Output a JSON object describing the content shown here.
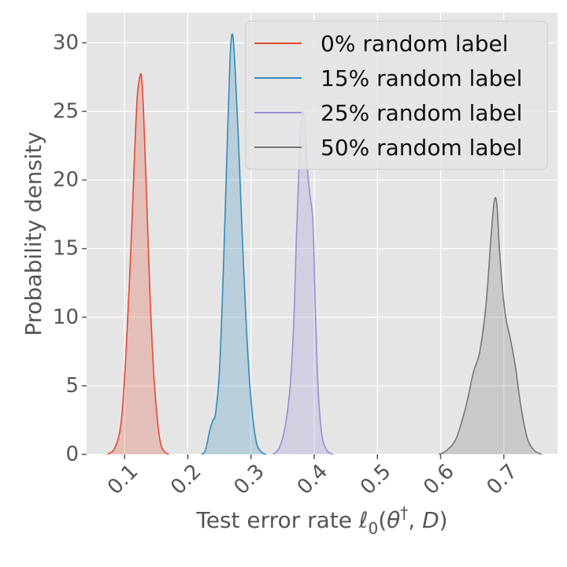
{
  "chart_data": {
    "type": "area",
    "xlabel": "Test error rate",
    "xlabel_math": {
      "ell": "ℓ",
      "sub": "0",
      "open": "(",
      "theta": "θ",
      "dagger": "†",
      "sep": ", ",
      "D": "D",
      "close": ")"
    },
    "ylabel": "Probability density",
    "xlim": [
      0.04,
      0.785
    ],
    "ylim": [
      0,
      32.2
    ],
    "xticks": [
      0.1,
      0.2,
      0.3,
      0.4,
      0.5,
      0.6,
      0.7
    ],
    "xtick_labels": [
      "0.1",
      "0.2",
      "0.3",
      "0.4",
      "0.5",
      "0.6",
      "0.7"
    ],
    "yticks": [
      0,
      5,
      10,
      15,
      20,
      25,
      30
    ],
    "ytick_labels": [
      "0",
      "5",
      "10",
      "15",
      "20",
      "25",
      "30"
    ],
    "grid": true,
    "legend_position": "top-right",
    "background": "#e5e5e5",
    "series": [
      {
        "name": "0% random label",
        "color": "#e24a33",
        "x": [
          0.073,
          0.085,
          0.095,
          0.103,
          0.11,
          0.116,
          0.12,
          0.124,
          0.127,
          0.13,
          0.134,
          0.14,
          0.146,
          0.152,
          0.157,
          0.163,
          0.17
        ],
        "y": [
          0,
          0.5,
          2.5,
          8,
          15,
          22,
          26,
          27.5,
          27.5,
          25,
          20,
          12,
          6,
          2.5,
          0.8,
          0.2,
          0
        ]
      },
      {
        "name": "15% random label",
        "color": "#348abd",
        "x": [
          0.222,
          0.228,
          0.235,
          0.24,
          0.244,
          0.25,
          0.256,
          0.262,
          0.267,
          0.271,
          0.275,
          0.281,
          0.287,
          0.293,
          0.3,
          0.308,
          0.316,
          0.324
        ],
        "y": [
          0,
          0.3,
          1.8,
          2.5,
          3.0,
          6,
          13,
          22,
          29,
          30.6,
          28,
          22,
          15,
          9,
          4,
          1,
          0.2,
          0
        ]
      },
      {
        "name": "25% random label",
        "color": "#988ed5",
        "x": [
          0.335,
          0.345,
          0.354,
          0.362,
          0.368,
          0.372,
          0.376,
          0.38,
          0.384,
          0.389,
          0.393,
          0.398,
          0.401,
          0.406,
          0.412,
          0.42,
          0.43
        ],
        "y": [
          0,
          0.5,
          2,
          5,
          10,
          16,
          21,
          24.5,
          24.5,
          21,
          19,
          17,
          12,
          5,
          1.5,
          0.3,
          0
        ]
      },
      {
        "name": "50% random label",
        "color": "#777777",
        "x": [
          0.597,
          0.61,
          0.625,
          0.64,
          0.652,
          0.662,
          0.672,
          0.68,
          0.685,
          0.689,
          0.693,
          0.698,
          0.703,
          0.71,
          0.718,
          0.727,
          0.737,
          0.748,
          0.76
        ],
        "y": [
          0,
          0.3,
          1.2,
          3.5,
          6,
          7.5,
          11,
          16,
          18.5,
          18.2,
          15,
          12,
          10,
          8.5,
          6.5,
          3.5,
          1.2,
          0.3,
          0
        ]
      }
    ]
  }
}
